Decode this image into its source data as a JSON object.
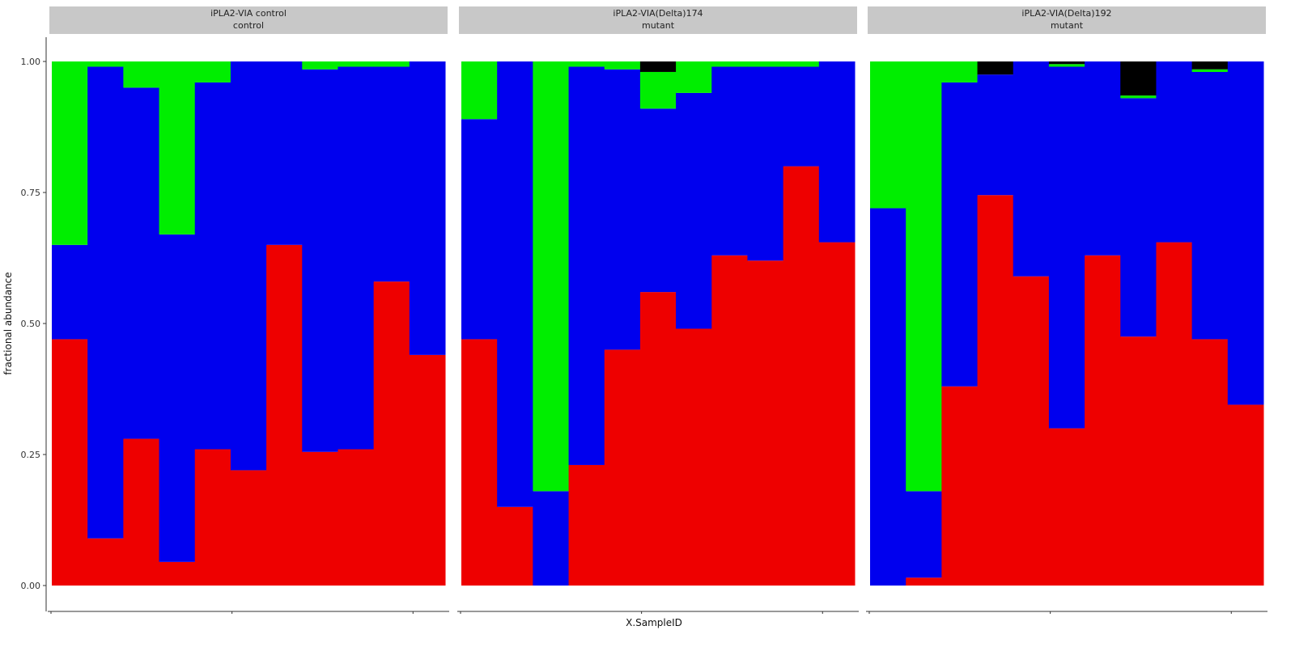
{
  "chart_data": {
    "type": "bar",
    "stacked": true,
    "xlabel": "X.SampleID",
    "ylabel": "fractional abundance",
    "ylim": [
      0,
      1
    ],
    "yticks": [
      "0.00",
      "0.25",
      "0.50",
      "0.75",
      "1.00"
    ],
    "series_colors": [
      "#ee0000",
      "#0000ee",
      "#00ee00",
      "#000000"
    ],
    "panels": [
      {
        "strip": [
          "iPLA2-VIA control",
          "control"
        ],
        "stacks": [
          [
            0.47,
            0.18,
            0.35,
            0.0
          ],
          [
            0.09,
            0.9,
            0.01,
            0.0
          ],
          [
            0.28,
            0.67,
            0.05,
            0.0
          ],
          [
            0.045,
            0.625,
            0.33,
            0.0
          ],
          [
            0.26,
            0.7,
            0.04,
            0.0
          ],
          [
            0.22,
            0.78,
            0.0,
            0.0
          ],
          [
            0.65,
            0.35,
            0.0,
            0.0
          ],
          [
            0.255,
            0.73,
            0.015,
            0.0
          ],
          [
            0.26,
            0.73,
            0.01,
            0.0
          ],
          [
            0.58,
            0.41,
            0.01,
            0.0
          ],
          [
            0.44,
            0.56,
            0.0,
            0.0
          ]
        ]
      },
      {
        "strip": [
          "iPLA2-VIA(Delta)174",
          "mutant"
        ],
        "stacks": [
          [
            0.47,
            0.42,
            0.11,
            0.0
          ],
          [
            0.15,
            0.85,
            0.0,
            0.0
          ],
          [
            0.0,
            0.18,
            0.82,
            0.0
          ],
          [
            0.23,
            0.76,
            0.01,
            0.0
          ],
          [
            0.45,
            0.535,
            0.015,
            0.0
          ],
          [
            0.56,
            0.35,
            0.07,
            0.02
          ],
          [
            0.49,
            0.45,
            0.06,
            0.0
          ],
          [
            0.63,
            0.36,
            0.01,
            0.0
          ],
          [
            0.62,
            0.37,
            0.01,
            0.0
          ],
          [
            0.8,
            0.19,
            0.01,
            0.0
          ],
          [
            0.655,
            0.345,
            0.0,
            0.0
          ]
        ]
      },
      {
        "strip": [
          "iPLA2-VIA(Delta)192",
          "mutant"
        ],
        "stacks": [
          [
            0.0,
            0.72,
            0.28,
            0.0
          ],
          [
            0.015,
            0.165,
            0.82,
            0.0
          ],
          [
            0.38,
            0.58,
            0.04,
            0.0
          ],
          [
            0.745,
            0.23,
            0.0,
            0.025
          ],
          [
            0.59,
            0.41,
            0.0,
            0.0
          ],
          [
            0.3,
            0.69,
            0.005,
            0.005
          ],
          [
            0.63,
            0.37,
            0.0,
            0.0
          ],
          [
            0.475,
            0.455,
            0.005,
            0.065
          ],
          [
            0.655,
            0.345,
            0.0,
            0.0
          ],
          [
            0.47,
            0.51,
            0.005,
            0.015
          ],
          [
            0.345,
            0.655,
            0.0,
            0.0
          ]
        ]
      }
    ]
  }
}
